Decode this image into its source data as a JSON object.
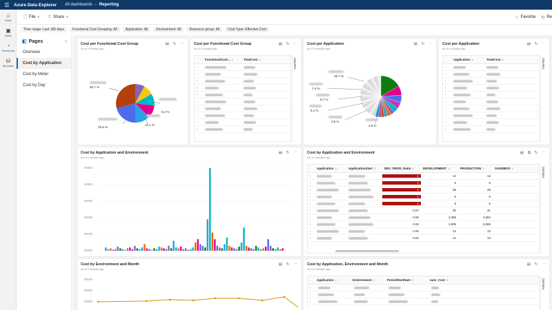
{
  "app": {
    "title": "Azure Data Explorer",
    "breadcrumb": [
      "All dashboards",
      "Reporting"
    ]
  },
  "rail": [
    {
      "label": "Home",
      "icon": "home-icon"
    },
    {
      "label": "Query",
      "icon": "query-icon"
    },
    {
      "label": "Dashboards",
      "icon": "dashboards-icon",
      "active": true
    },
    {
      "label": "My cluster",
      "icon": "cluster-icon"
    }
  ],
  "toolbar": {
    "file_label": "File",
    "share_label": "Share",
    "favorite_label": "Favorite",
    "refresh_label": "Re"
  },
  "filters": [
    "Time range: Last 180 days",
    "Functional Cost Grouping: All",
    "Application: All",
    "Environment: All",
    "Resource group: All",
    "Cost Type: Effective Cost"
  ],
  "pages": {
    "title": "Pages",
    "items": [
      "Overview",
      "Cost by Application",
      "Cost by Meter",
      "Cost by Day"
    ],
    "active_index": 1
  },
  "tiles": {
    "fcg_pie": {
      "title": "Cost per Functional Cost Group",
      "subtitle": "As of 4 minutes ago",
      "labels": [
        "30.7 %",
        "6.2 %",
        "12.1 %",
        "25.8 %"
      ]
    },
    "fcg_grid": {
      "title": "Cost per Functional Cost Group",
      "subtitle": "As of 4 minutes ago",
      "columns": [
        "FunctionalCost...",
        "TotalCost"
      ],
      "side_label": "Columns"
    },
    "app_pie": {
      "title": "Cost per Application",
      "subtitle": "As of 4 minutes ago",
      "labels": [
        "16.7 %",
        "7.4 %",
        "5.7 %",
        "5.1 %",
        "3.9 %",
        "2.5 %"
      ]
    },
    "app_grid": {
      "title": "Cost per Application",
      "subtitle": "As of 4 minutes ago",
      "columns": [
        "Application",
        "TotalCost"
      ],
      "side_label": "Columns"
    },
    "app_env_chart": {
      "title": "Cost by Application and Environment",
      "subtitle": "As of 4 minutes ago"
    },
    "app_env_grid": {
      "title": "Cost by Application and Environment",
      "subtitle": "As of 4 minutes ago",
      "columns": [
        "Application",
        "ApplicationStart",
        "DEV_PROD_Ratio",
        "DEVELOPMENT",
        "PRODUCTION",
        "SANDBOX"
      ],
      "side_label": "Columns",
      "rows": [
        {
          "ratio": "1",
          "dev": "12",
          "prod": "12",
          "red": true
        },
        {
          "ratio": "1",
          "dev": "6",
          "prod": "6",
          "red": true
        },
        {
          "ratio": "1",
          "dev": "39",
          "prod": "39",
          "red": true
        },
        {
          "ratio": "1",
          "dev": "6",
          "prod": "6",
          "red": true
        },
        {
          "ratio": "1",
          "dev": "8",
          "prod": "8",
          "red": true
        },
        {
          "ratio": "0.97",
          "dev": "30",
          "prod": "31",
          "red": false
        },
        {
          "ratio": "0.96",
          "dev": "4,395",
          "prod": "4,584",
          "red": false
        },
        {
          "ratio": "0.92",
          "dev": "1,909",
          "prod": "2,068",
          "red": false
        },
        {
          "ratio": "0.92",
          "dev": "12",
          "prod": "13",
          "red": false
        },
        {
          "ratio": "0.92",
          "dev": "12",
          "prod": "13",
          "red": false
        }
      ]
    },
    "env_month_chart": {
      "title": "Cost by Environment and Month",
      "subtitle": "As of 4 minutes ago"
    },
    "app_env_month_grid": {
      "title": "Cost by Application, Environment and Month",
      "subtitle": "As of 4 minutes ago",
      "columns": [
        "Application",
        "Environment",
        "PeriodStartDate",
        "sum_Cost"
      ],
      "side_label": "Columns"
    }
  },
  "colors": {
    "topbar": "#0f3a68",
    "accent": "#0f6cbd",
    "ratio_red": "#b01010"
  }
}
